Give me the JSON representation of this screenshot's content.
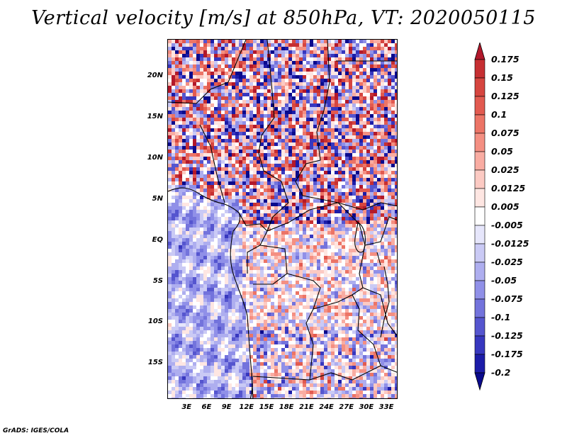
{
  "title": "Vertical velocity [m/s] at 850hPa, VT: 2020050115",
  "map": {
    "variable": "Vertical velocity",
    "units": "m/s",
    "level": "850hPa",
    "valid_time": "2020050115",
    "lat_labels": [
      "20N",
      "15N",
      "10N",
      "5N",
      "EQ",
      "5S",
      "10S",
      "15S"
    ],
    "lat_values": [
      20,
      15,
      10,
      5,
      0,
      -5,
      -10,
      -15
    ],
    "lon_labels": [
      "3E",
      "6E",
      "9E",
      "12E",
      "15E",
      "18E",
      "21E",
      "24E",
      "27E",
      "30E",
      "33E"
    ],
    "lon_values": [
      3,
      6,
      9,
      12,
      15,
      18,
      21,
      24,
      27,
      30,
      33
    ],
    "lat_range": [
      -19.3,
      24.6
    ],
    "lon_range": [
      0.1,
      34.7
    ]
  },
  "colorbar": {
    "levels": [
      "0.175",
      "0.15",
      "0.125",
      "0.1",
      "0.075",
      "0.05",
      "0.025",
      "0.0125",
      "0.005",
      "-0.005",
      "-0.0125",
      "-0.025",
      "-0.05",
      "-0.075",
      "-0.1",
      "-0.125",
      "-0.175",
      "-0.2"
    ],
    "colors": [
      "#b2182b",
      "#c62f32",
      "#d6453f",
      "#e25a50",
      "#ec7466",
      "#f48f82",
      "#f9aca2",
      "#fccac3",
      "#fee6e2",
      "#ffffff",
      "#e6e6fb",
      "#cacaf5",
      "#aeaeef",
      "#9090e8",
      "#7373dc",
      "#5555cf",
      "#3737bf",
      "#1c1ca8",
      "#0a0a8c"
    ]
  },
  "credit": "GrADS: IGES/COLA"
}
